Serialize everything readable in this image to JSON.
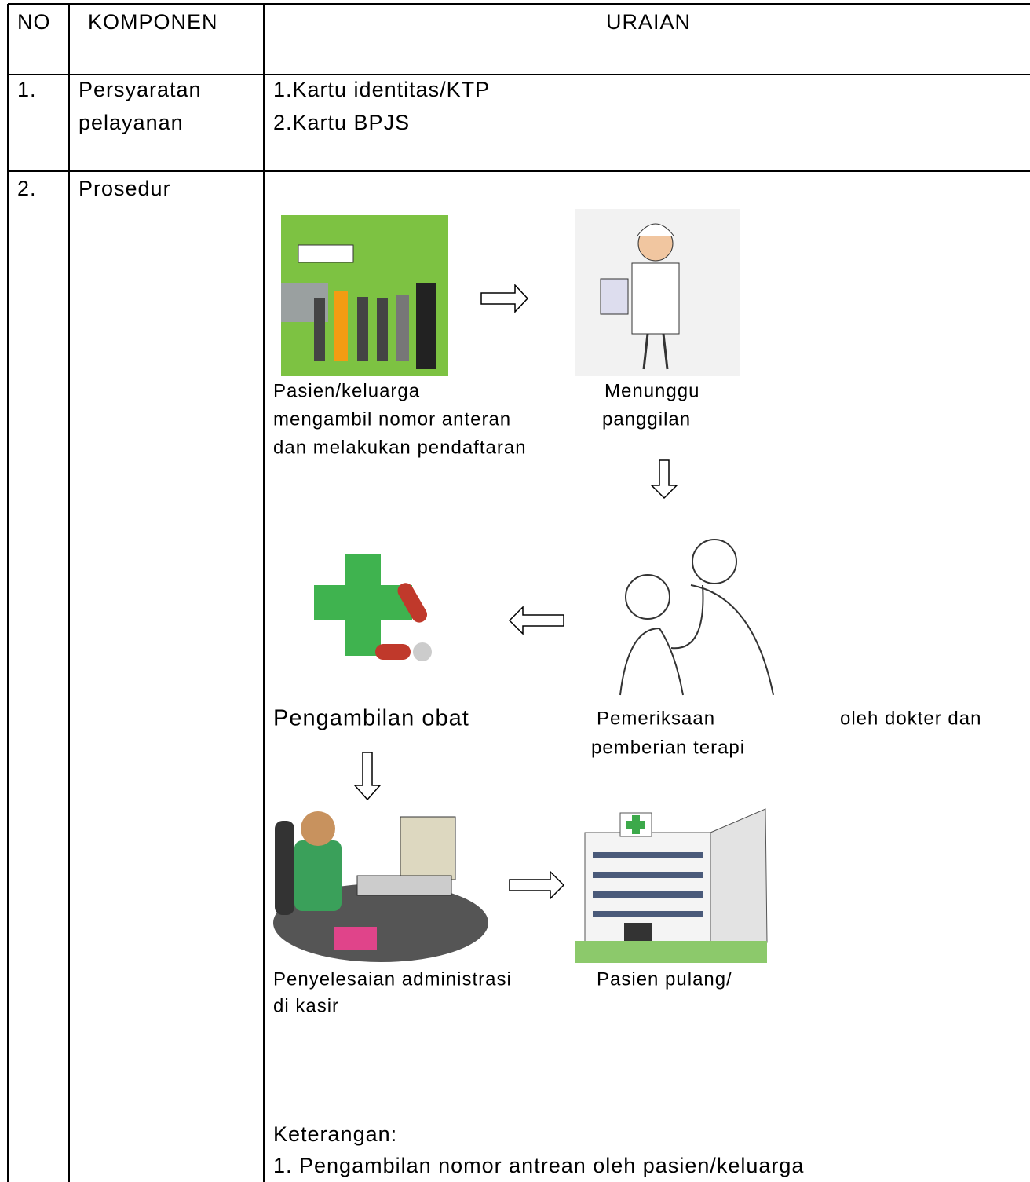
{
  "table": {
    "header": [
      "NO",
      "KOMPONEN",
      "URAIAN"
    ],
    "rows": [
      {
        "no": "1.",
        "komponen": [
          "Persyaratan",
          "pelayanan"
        ],
        "uraian": [
          "1.Kartu identitas/KTP",
          "2.Kartu BPJS"
        ]
      },
      {
        "no": "2.",
        "komponen": [
          "Prosedur"
        ],
        "steps": [
          {
            "caption": [
              "Pasien/keluarga",
              "mengambil nomor anteran",
              "dan melakukan pendaftaran"
            ]
          },
          {
            "caption": [
              "Menunggu",
              "panggilan"
            ]
          },
          {
            "caption": [
              "Pengambilan obat"
            ]
          },
          {
            "caption": [
              "Pemeriksaan",
              "oleh dokter dan",
              "pemberian terapi"
            ]
          },
          {
            "caption": [
              "Penyelesaian administrasi",
              "di kasir"
            ]
          },
          {
            "caption": [
              "Pasien pulang/"
            ]
          }
        ],
        "keterangan": {
          "title": "Keterangan:",
          "items": [
            "1. Pengambilan nomor antrean oleh pasien/keluarga"
          ]
        }
      }
    ]
  }
}
